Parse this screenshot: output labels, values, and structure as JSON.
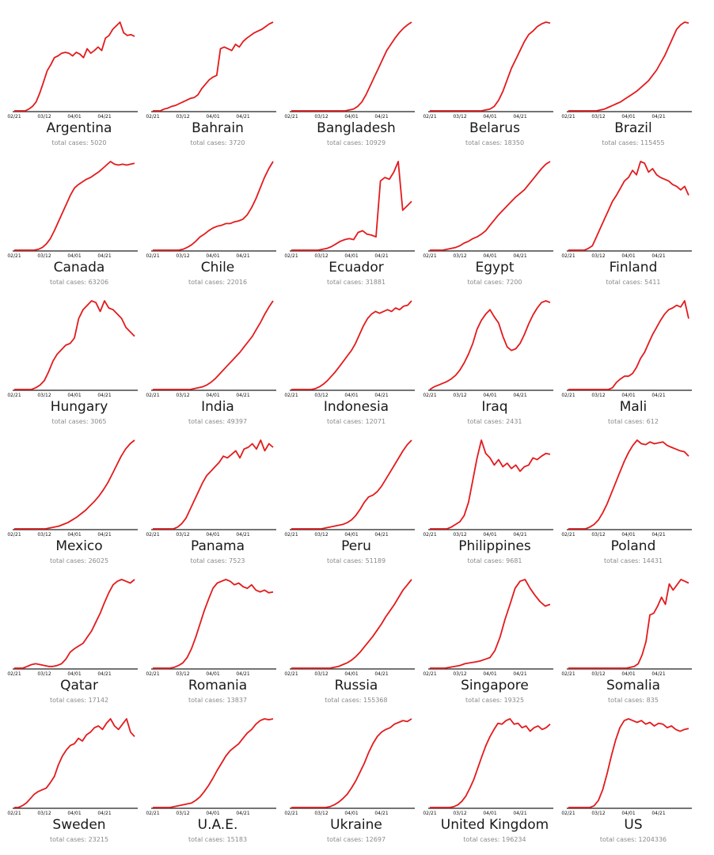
{
  "total_cases_prefix": "total cases: ",
  "line_color": "#e31a1c",
  "chart_data": {
    "type": "line",
    "x_tick_labels": [
      "02/21",
      "03/12",
      "04/01",
      "04/21"
    ],
    "y_scale": "normalized (each panel scaled to its own maximum)",
    "panels": [
      {
        "name": "Argentina",
        "total_cases": "5020",
        "y": [
          0,
          0,
          0,
          0,
          0.02,
          0.05,
          0.1,
          0.2,
          0.32,
          0.45,
          0.52,
          0.6,
          0.62,
          0.65,
          0.66,
          0.65,
          0.62,
          0.66,
          0.64,
          0.6,
          0.7,
          0.65,
          0.68,
          0.72,
          0.68,
          0.82,
          0.85,
          0.92,
          0.96,
          1.0,
          0.88,
          0.85,
          0.86,
          0.84
        ]
      },
      {
        "name": "Bahrain",
        "total_cases": "3720",
        "y": [
          0,
          0,
          0,
          0.02,
          0.03,
          0.05,
          0.06,
          0.08,
          0.1,
          0.12,
          0.14,
          0.15,
          0.18,
          0.25,
          0.3,
          0.35,
          0.38,
          0.4,
          0.7,
          0.72,
          0.7,
          0.68,
          0.75,
          0.72,
          0.78,
          0.82,
          0.85,
          0.88,
          0.9,
          0.92,
          0.95,
          0.98,
          1.0
        ]
      },
      {
        "name": "Bangladesh",
        "total_cases": "10929",
        "y": [
          0,
          0,
          0,
          0,
          0,
          0,
          0,
          0,
          0,
          0,
          0,
          0,
          0,
          0,
          0.01,
          0.02,
          0.05,
          0.1,
          0.18,
          0.28,
          0.38,
          0.48,
          0.58,
          0.68,
          0.75,
          0.82,
          0.88,
          0.93,
          0.97,
          1.0
        ]
      },
      {
        "name": "Belarus",
        "total_cases": "18350",
        "y": [
          0,
          0,
          0,
          0,
          0,
          0,
          0,
          0,
          0,
          0,
          0,
          0,
          0,
          0.01,
          0.02,
          0.05,
          0.12,
          0.22,
          0.35,
          0.48,
          0.58,
          0.68,
          0.78,
          0.86,
          0.9,
          0.95,
          0.98,
          1.0,
          0.99
        ]
      },
      {
        "name": "Brazil",
        "total_cases": "115455",
        "y": [
          0,
          0,
          0,
          0,
          0,
          0,
          0,
          0,
          0.01,
          0.02,
          0.04,
          0.06,
          0.08,
          0.1,
          0.13,
          0.16,
          0.19,
          0.22,
          0.26,
          0.3,
          0.34,
          0.4,
          0.46,
          0.54,
          0.62,
          0.72,
          0.82,
          0.92,
          0.97,
          1.0,
          0.99
        ]
      },
      {
        "name": "Canada",
        "total_cases": "63206",
        "y": [
          0,
          0,
          0,
          0,
          0,
          0,
          0.01,
          0.03,
          0.07,
          0.13,
          0.22,
          0.32,
          0.42,
          0.52,
          0.62,
          0.7,
          0.74,
          0.77,
          0.8,
          0.82,
          0.85,
          0.88,
          0.92,
          0.96,
          1.0,
          0.97,
          0.96,
          0.97,
          0.96,
          0.97,
          0.98
        ]
      },
      {
        "name": "Chile",
        "total_cases": "22016",
        "y": [
          0,
          0,
          0,
          0,
          0,
          0,
          0,
          0.01,
          0.03,
          0.06,
          0.1,
          0.15,
          0.18,
          0.22,
          0.25,
          0.27,
          0.28,
          0.3,
          0.3,
          0.32,
          0.33,
          0.35,
          0.4,
          0.48,
          0.58,
          0.7,
          0.82,
          0.92,
          1.0
        ]
      },
      {
        "name": "Ecuador",
        "total_cases": "31881",
        "y": [
          0,
          0,
          0,
          0,
          0,
          0,
          0,
          0.01,
          0.02,
          0.04,
          0.07,
          0.1,
          0.12,
          0.13,
          0.12,
          0.2,
          0.22,
          0.18,
          0.17,
          0.15,
          0.78,
          0.82,
          0.8,
          0.88,
          1.0,
          0.45,
          0.5,
          0.55
        ]
      },
      {
        "name": "Egypt",
        "total_cases": "7200",
        "y": [
          0,
          0,
          0,
          0,
          0.01,
          0.02,
          0.03,
          0.05,
          0.08,
          0.1,
          0.13,
          0.15,
          0.18,
          0.22,
          0.28,
          0.34,
          0.4,
          0.45,
          0.5,
          0.55,
          0.6,
          0.64,
          0.68,
          0.74,
          0.8,
          0.86,
          0.92,
          0.97,
          1.0
        ]
      },
      {
        "name": "Finland",
        "total_cases": "5411",
        "y": [
          0,
          0,
          0,
          0,
          0,
          0.02,
          0.05,
          0.15,
          0.25,
          0.35,
          0.45,
          0.55,
          0.62,
          0.7,
          0.78,
          0.82,
          0.9,
          0.85,
          1.0,
          0.98,
          0.88,
          0.92,
          0.85,
          0.82,
          0.8,
          0.78,
          0.74,
          0.72,
          0.68,
          0.72,
          0.62
        ]
      },
      {
        "name": "Hungary",
        "total_cases": "3065",
        "y": [
          0,
          0,
          0,
          0,
          0,
          0.02,
          0.05,
          0.1,
          0.2,
          0.32,
          0.4,
          0.45,
          0.5,
          0.52,
          0.58,
          0.8,
          0.9,
          0.95,
          1.0,
          0.98,
          0.88,
          1.0,
          0.92,
          0.9,
          0.85,
          0.8,
          0.7,
          0.65,
          0.6
        ]
      },
      {
        "name": "India",
        "total_cases": "49397",
        "y": [
          0,
          0,
          0,
          0,
          0,
          0,
          0,
          0,
          0,
          0,
          0.01,
          0.02,
          0.03,
          0.05,
          0.08,
          0.12,
          0.17,
          0.22,
          0.27,
          0.32,
          0.37,
          0.42,
          0.48,
          0.54,
          0.6,
          0.68,
          0.76,
          0.85,
          0.93,
          1.0
        ]
      },
      {
        "name": "Indonesia",
        "total_cases": "12071",
        "y": [
          0,
          0,
          0,
          0,
          0,
          0,
          0.01,
          0.03,
          0.06,
          0.1,
          0.15,
          0.2,
          0.26,
          0.32,
          0.38,
          0.44,
          0.52,
          0.62,
          0.72,
          0.8,
          0.85,
          0.88,
          0.86,
          0.88,
          0.9,
          0.88,
          0.92,
          0.9,
          0.94,
          0.95,
          1.0
        ]
      },
      {
        "name": "Iraq",
        "total_cases": "2431",
        "y": [
          0,
          0.03,
          0.05,
          0.07,
          0.09,
          0.12,
          0.16,
          0.22,
          0.3,
          0.4,
          0.52,
          0.68,
          0.78,
          0.85,
          0.9,
          0.82,
          0.75,
          0.6,
          0.48,
          0.44,
          0.46,
          0.52,
          0.62,
          0.74,
          0.84,
          0.92,
          0.98,
          1.0,
          0.98
        ]
      },
      {
        "name": "Mali",
        "total_cases": "612",
        "y": [
          0,
          0,
          0,
          0,
          0,
          0,
          0,
          0,
          0,
          0,
          0,
          0.02,
          0.08,
          0.12,
          0.15,
          0.15,
          0.18,
          0.25,
          0.35,
          0.42,
          0.52,
          0.62,
          0.7,
          0.78,
          0.85,
          0.9,
          0.92,
          0.95,
          0.93,
          1.0,
          0.8
        ]
      },
      {
        "name": "Mexico",
        "total_cases": "26025",
        "y": [
          0,
          0,
          0,
          0,
          0,
          0,
          0,
          0,
          0.01,
          0.02,
          0.03,
          0.05,
          0.07,
          0.1,
          0.13,
          0.17,
          0.21,
          0.26,
          0.31,
          0.37,
          0.44,
          0.52,
          0.62,
          0.72,
          0.82,
          0.9,
          0.96,
          1.0
        ]
      },
      {
        "name": "Panama",
        "total_cases": "7523",
        "y": [
          0,
          0,
          0,
          0,
          0,
          0,
          0.02,
          0.06,
          0.12,
          0.22,
          0.32,
          0.42,
          0.52,
          0.6,
          0.65,
          0.7,
          0.75,
          0.82,
          0.8,
          0.84,
          0.88,
          0.8,
          0.9,
          0.92,
          0.96,
          0.9,
          1.0,
          0.88,
          0.96,
          0.92
        ]
      },
      {
        "name": "Peru",
        "total_cases": "51189",
        "y": [
          0,
          0,
          0,
          0,
          0,
          0,
          0,
          0,
          0.01,
          0.02,
          0.03,
          0.04,
          0.05,
          0.07,
          0.1,
          0.15,
          0.22,
          0.3,
          0.36,
          0.38,
          0.42,
          0.48,
          0.56,
          0.64,
          0.72,
          0.8,
          0.88,
          0.95,
          1.0
        ]
      },
      {
        "name": "Philippines",
        "total_cases": "9681",
        "y": [
          0,
          0,
          0,
          0,
          0,
          0.02,
          0.05,
          0.08,
          0.15,
          0.3,
          0.55,
          0.8,
          1.0,
          0.85,
          0.8,
          0.72,
          0.78,
          0.7,
          0.74,
          0.68,
          0.72,
          0.65,
          0.7,
          0.72,
          0.8,
          0.78,
          0.82,
          0.85,
          0.84
        ]
      },
      {
        "name": "Poland",
        "total_cases": "14431",
        "y": [
          0,
          0,
          0,
          0,
          0,
          0.02,
          0.05,
          0.1,
          0.18,
          0.28,
          0.4,
          0.52,
          0.64,
          0.76,
          0.86,
          0.94,
          1.0,
          0.96,
          0.95,
          0.98,
          0.96,
          0.97,
          0.98,
          0.94,
          0.92,
          0.9,
          0.88,
          0.87,
          0.82
        ]
      },
      {
        "name": "Qatar",
        "total_cases": "17142",
        "y": [
          0,
          0,
          0,
          0.02,
          0.04,
          0.05,
          0.04,
          0.03,
          0.02,
          0.02,
          0.03,
          0.05,
          0.1,
          0.18,
          0.22,
          0.25,
          0.28,
          0.35,
          0.42,
          0.52,
          0.62,
          0.74,
          0.85,
          0.94,
          0.98,
          1.0,
          0.98,
          0.96,
          1.0
        ]
      },
      {
        "name": "Romania",
        "total_cases": "13837",
        "y": [
          0,
          0,
          0,
          0,
          0,
          0.01,
          0.03,
          0.06,
          0.12,
          0.22,
          0.35,
          0.5,
          0.65,
          0.78,
          0.9,
          0.96,
          0.98,
          1.0,
          0.98,
          0.94,
          0.96,
          0.92,
          0.9,
          0.94,
          0.88,
          0.86,
          0.88,
          0.85,
          0.86
        ]
      },
      {
        "name": "Russia",
        "total_cases": "155368",
        "y": [
          0,
          0,
          0,
          0,
          0,
          0,
          0,
          0,
          0,
          0,
          0.01,
          0.02,
          0.04,
          0.06,
          0.09,
          0.13,
          0.18,
          0.24,
          0.3,
          0.36,
          0.43,
          0.5,
          0.58,
          0.65,
          0.72,
          0.8,
          0.88,
          0.94,
          1.0
        ]
      },
      {
        "name": "Singapore",
        "total_cases": "19325",
        "y": [
          0,
          0,
          0,
          0,
          0.01,
          0.02,
          0.03,
          0.05,
          0.06,
          0.07,
          0.08,
          0.1,
          0.12,
          0.2,
          0.35,
          0.55,
          0.72,
          0.9,
          0.98,
          1.0,
          0.9,
          0.82,
          0.75,
          0.7,
          0.72
        ]
      },
      {
        "name": "Somalia",
        "total_cases": "835",
        "y": [
          0,
          0,
          0,
          0,
          0,
          0,
          0,
          0,
          0,
          0,
          0,
          0,
          0,
          0,
          0,
          0,
          0.01,
          0.02,
          0.05,
          0.15,
          0.3,
          0.6,
          0.62,
          0.7,
          0.8,
          0.72,
          0.95,
          0.88,
          0.94,
          1.0,
          0.98,
          0.96
        ]
      },
      {
        "name": "Sweden",
        "total_cases": "23215",
        "y": [
          0,
          0,
          0.02,
          0.05,
          0.1,
          0.15,
          0.18,
          0.2,
          0.22,
          0.28,
          0.35,
          0.48,
          0.58,
          0.65,
          0.7,
          0.72,
          0.78,
          0.75,
          0.82,
          0.85,
          0.9,
          0.92,
          0.88,
          0.95,
          1.0,
          0.92,
          0.88,
          0.94,
          1.0,
          0.85,
          0.8
        ]
      },
      {
        "name": "U.A.E.",
        "total_cases": "15183",
        "y": [
          0,
          0,
          0,
          0,
          0,
          0.01,
          0.02,
          0.03,
          0.04,
          0.05,
          0.08,
          0.12,
          0.18,
          0.25,
          0.33,
          0.42,
          0.5,
          0.58,
          0.64,
          0.68,
          0.72,
          0.78,
          0.84,
          0.88,
          0.94,
          0.98,
          1.0,
          0.99,
          1.0
        ]
      },
      {
        "name": "Ukraine",
        "total_cases": "12697",
        "y": [
          0,
          0,
          0,
          0,
          0,
          0,
          0,
          0,
          0,
          0.01,
          0.03,
          0.06,
          0.1,
          0.15,
          0.22,
          0.3,
          0.4,
          0.5,
          0.62,
          0.72,
          0.8,
          0.85,
          0.88,
          0.9,
          0.94,
          0.96,
          0.98,
          0.97,
          1.0
        ]
      },
      {
        "name": "United Kingdom",
        "total_cases": "196234",
        "y": [
          0,
          0,
          0,
          0,
          0,
          0,
          0.01,
          0.03,
          0.07,
          0.13,
          0.22,
          0.32,
          0.45,
          0.58,
          0.7,
          0.8,
          0.88,
          0.95,
          0.94,
          0.98,
          1.0,
          0.94,
          0.95,
          0.9,
          0.92,
          0.86,
          0.9,
          0.92,
          0.88,
          0.9,
          0.94
        ]
      },
      {
        "name": "US",
        "total_cases": "1204336",
        "y": [
          0,
          0,
          0,
          0,
          0,
          0,
          0.02,
          0.08,
          0.2,
          0.38,
          0.58,
          0.76,
          0.9,
          0.98,
          1.0,
          0.98,
          0.96,
          0.98,
          0.94,
          0.96,
          0.92,
          0.95,
          0.94,
          0.9,
          0.92,
          0.88,
          0.86,
          0.88,
          0.89
        ]
      }
    ]
  }
}
